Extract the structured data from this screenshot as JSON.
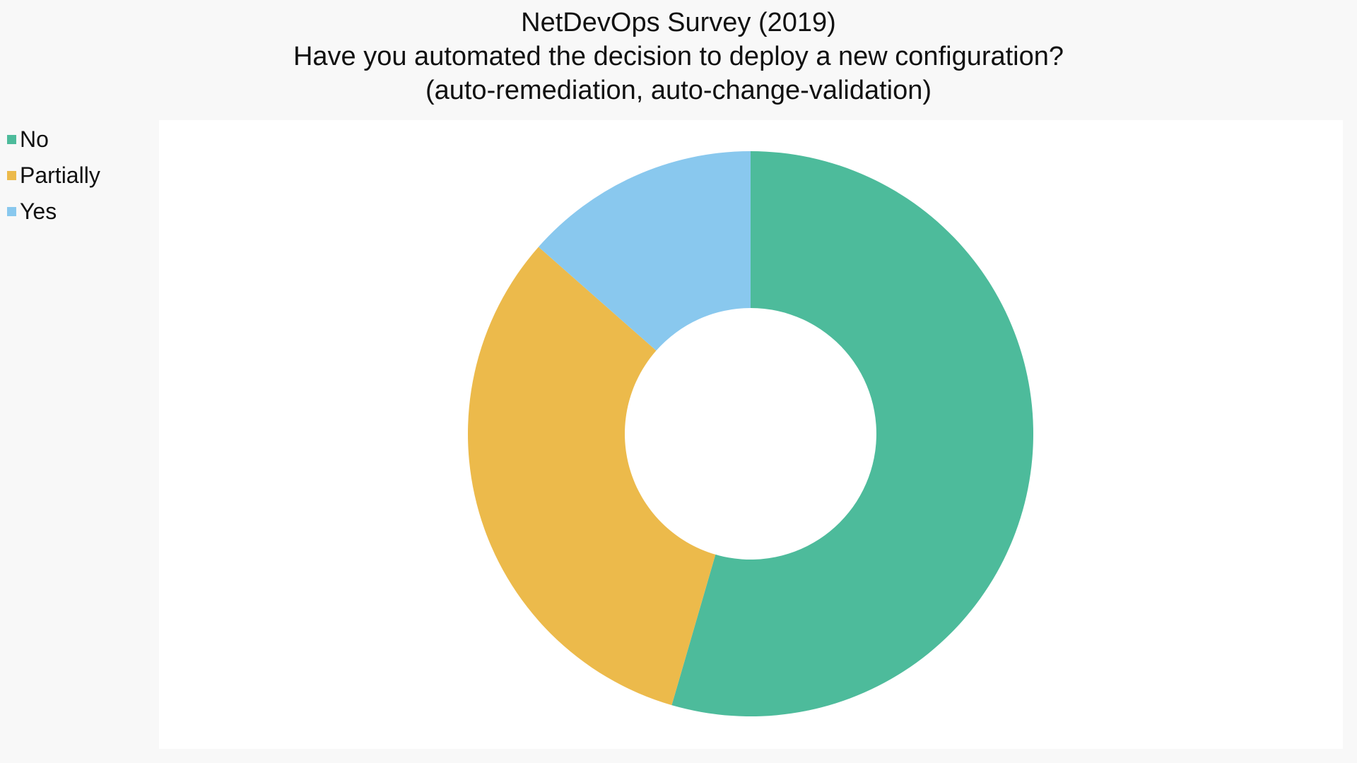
{
  "title_lines": [
    "NetDevOps Survey (2019)",
    "Have you automated the decision to deploy a new configuration?",
    "(auto-remediation, auto-change-validation)"
  ],
  "chart_data": {
    "type": "pie",
    "variant": "donut",
    "title": "NetDevOps Survey (2019) Have you automated the decision to deploy a new configuration? (auto-remediation, auto-change-validation)",
    "categories": [
      "No",
      "Partially",
      "Yes"
    ],
    "values": [
      54.5,
      32.0,
      13.5
    ],
    "unit": "percent (estimated share)",
    "colors": [
      "#4dbb9b",
      "#ecba4b",
      "#89c8ee"
    ],
    "legend_position": "top-left"
  }
}
